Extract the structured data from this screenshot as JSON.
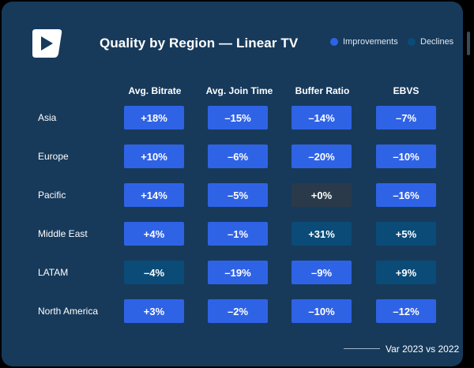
{
  "colors": {
    "improvement": "#2f63e6",
    "decline": "#0a4b78",
    "neutral": "#2a3a4a"
  },
  "logo": {
    "icon": "play-logo-icon"
  },
  "chart_data": {
    "type": "table",
    "title": "Quality by Region — Linear TV",
    "legend": [
      {
        "name": "Improvements",
        "status": "improvement"
      },
      {
        "name": "Declines",
        "status": "decline"
      }
    ],
    "legend_position": "top-right",
    "columns": [
      "Avg. Bitrate",
      "Avg. Join Time",
      "Buffer Ratio",
      "EBVS"
    ],
    "rows": [
      {
        "region": "Asia",
        "cells": [
          {
            "text": "+18%",
            "value": 18,
            "status": "improvement"
          },
          {
            "text": "–15%",
            "value": -15,
            "status": "improvement"
          },
          {
            "text": "–14%",
            "value": -14,
            "status": "improvement"
          },
          {
            "text": "–7%",
            "value": -7,
            "status": "improvement"
          }
        ]
      },
      {
        "region": "Europe",
        "cells": [
          {
            "text": "+10%",
            "value": 10,
            "status": "improvement"
          },
          {
            "text": "–6%",
            "value": -6,
            "status": "improvement"
          },
          {
            "text": "–20%",
            "value": -20,
            "status": "improvement"
          },
          {
            "text": "–10%",
            "value": -10,
            "status": "improvement"
          }
        ]
      },
      {
        "region": "Pacific",
        "cells": [
          {
            "text": "+14%",
            "value": 14,
            "status": "improvement"
          },
          {
            "text": "–5%",
            "value": -5,
            "status": "improvement"
          },
          {
            "text": "+0%",
            "value": 0,
            "status": "neutral"
          },
          {
            "text": "–16%",
            "value": -16,
            "status": "improvement"
          }
        ]
      },
      {
        "region": "Middle East",
        "cells": [
          {
            "text": "+4%",
            "value": 4,
            "status": "improvement"
          },
          {
            "text": "–1%",
            "value": -1,
            "status": "improvement"
          },
          {
            "text": "+31%",
            "value": 31,
            "status": "decline"
          },
          {
            "text": "+5%",
            "value": 5,
            "status": "decline"
          }
        ]
      },
      {
        "region": "LATAM",
        "cells": [
          {
            "text": "–4%",
            "value": -4,
            "status": "decline"
          },
          {
            "text": "–19%",
            "value": -19,
            "status": "improvement"
          },
          {
            "text": "–9%",
            "value": -9,
            "status": "improvement"
          },
          {
            "text": "+9%",
            "value": 9,
            "status": "decline"
          }
        ]
      },
      {
        "region": "North America",
        "cells": [
          {
            "text": "+3%",
            "value": 3,
            "status": "improvement"
          },
          {
            "text": "–2%",
            "value": -2,
            "status": "improvement"
          },
          {
            "text": "–10%",
            "value": -10,
            "status": "improvement"
          },
          {
            "text": "–12%",
            "value": -12,
            "status": "improvement"
          }
        ]
      }
    ],
    "footnote": "Var 2023 vs 2022"
  }
}
